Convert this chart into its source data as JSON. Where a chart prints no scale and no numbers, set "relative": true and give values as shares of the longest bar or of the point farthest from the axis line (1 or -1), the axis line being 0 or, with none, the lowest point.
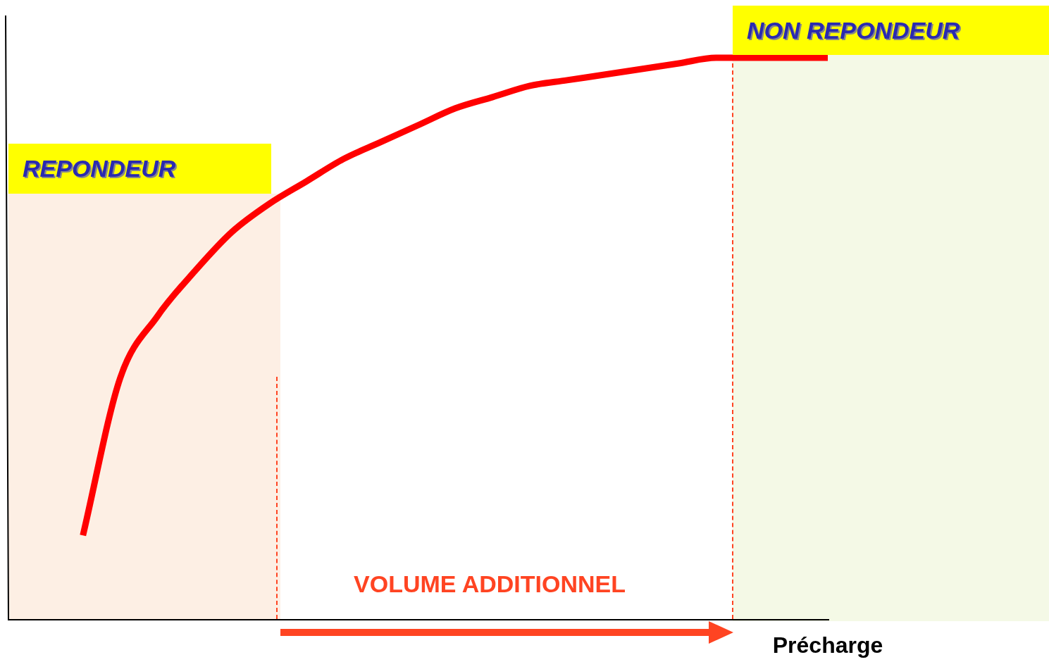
{
  "chart_data": {
    "type": "line",
    "relative": true,
    "xlabel": "Précharge",
    "categories": [
      null,
      null,
      null,
      null,
      null,
      null,
      null,
      null,
      null,
      null,
      null,
      null,
      null,
      null,
      null,
      null,
      null,
      null,
      null,
      null,
      null,
      null,
      null
    ],
    "series": [
      {
        "color": "#ff0000",
        "values": [
          null,
          null,
          0.15,
          0.43,
          0.54,
          0.62,
          0.69,
          0.74,
          0.78,
          0.82,
          0.85,
          0.88,
          0.91,
          0.93,
          0.95,
          0.96,
          0.97,
          0.98,
          0.99,
          1,
          1,
          1,
          1
        ]
      }
    ],
    "annotations": [
      "REPONDEUR",
      "NON REPONDEUR",
      "VOLUME ADDITIONNEL"
    ]
  }
}
